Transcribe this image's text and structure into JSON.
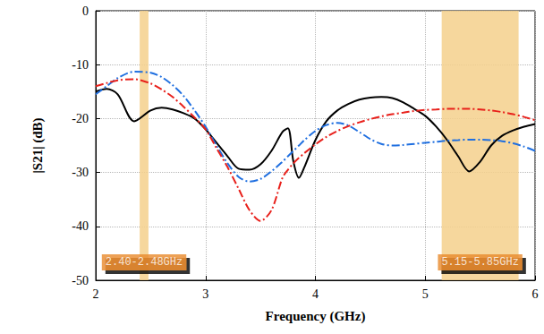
{
  "chart_data": {
    "type": "line",
    "xlabel": "Frequency (GHz)",
    "ylabel": "|S21| (dB)",
    "xlim": [
      2,
      6
    ],
    "xticks": [
      2,
      3,
      4,
      5,
      6
    ],
    "ylim": [
      -50,
      0
    ],
    "yticks": [
      -50,
      -40,
      -30,
      -20,
      -10,
      0
    ],
    "grid": true,
    "x": [
      2.0,
      2.1,
      2.2,
      2.35,
      2.5,
      2.6,
      2.7,
      2.8,
      2.9,
      3.0,
      3.1,
      3.2,
      3.3,
      3.4,
      3.5,
      3.6,
      3.7,
      3.75,
      3.8,
      3.85,
      3.9,
      4.0,
      4.1,
      4.2,
      4.3,
      4.4,
      4.5,
      4.6,
      4.7,
      4.8,
      4.9,
      5.0,
      5.1,
      5.2,
      5.3,
      5.4,
      5.5,
      5.6,
      5.7,
      5.8,
      5.9,
      6.0
    ],
    "series": [
      {
        "color": "#000000",
        "line_style": "solid",
        "values": [
          -15,
          -14.5,
          -15.5,
          -20.5,
          -18.5,
          -18,
          -18.3,
          -19,
          -20,
          -22,
          -24.5,
          -27,
          -29.3,
          -29.5,
          -28.5,
          -26,
          -22.5,
          -21.8,
          -28,
          -31,
          -29,
          -24,
          -20.5,
          -18.5,
          -17.3,
          -16.5,
          -16.1,
          -16,
          -16.2,
          -17,
          -18.2,
          -19.5,
          -21.5,
          -24,
          -27,
          -29.8,
          -28,
          -25,
          -23.2,
          -22.2,
          -21.5,
          -21
        ]
      },
      {
        "color": "#1f6fe0",
        "line_style": "dash-dot",
        "values": [
          -15.5,
          -14,
          -12.5,
          -11.3,
          -11.5,
          -12.3,
          -13.8,
          -15.8,
          -18.5,
          -21.5,
          -25,
          -28.3,
          -30.8,
          -31.7,
          -31.2,
          -29.8,
          -28,
          -27,
          -26,
          -25,
          -24,
          -22.3,
          -21.2,
          -20.8,
          -21.3,
          -22.5,
          -23.8,
          -24.7,
          -25,
          -24.9,
          -24.7,
          -24.5,
          -24.3,
          -24.1,
          -24,
          -23.9,
          -23.9,
          -24,
          -24.2,
          -24.6,
          -25.2,
          -26
        ]
      },
      {
        "color": "#e8201b",
        "line_style": "dash-dot",
        "values": [
          -14,
          -13.4,
          -12.9,
          -12.7,
          -13.5,
          -14.6,
          -16,
          -17.8,
          -19.8,
          -22,
          -25.5,
          -29,
          -33,
          -37,
          -39,
          -37,
          -31,
          -29.5,
          -28.3,
          -27.3,
          -26.4,
          -24.8,
          -23.4,
          -22.3,
          -21.4,
          -20.7,
          -20.1,
          -19.6,
          -19.2,
          -18.9,
          -18.6,
          -18.4,
          -18.3,
          -18.2,
          -18.2,
          -18.2,
          -18.3,
          -18.5,
          -18.8,
          -19.2,
          -19.7,
          -20.3
        ]
      }
    ],
    "bands": [
      {
        "xlim": [
          2.4,
          2.48
        ],
        "label": "2.40-2.48GHz"
      },
      {
        "xlim": [
          5.15,
          5.85
        ],
        "label": "5.15-5.85GHz"
      }
    ]
  }
}
